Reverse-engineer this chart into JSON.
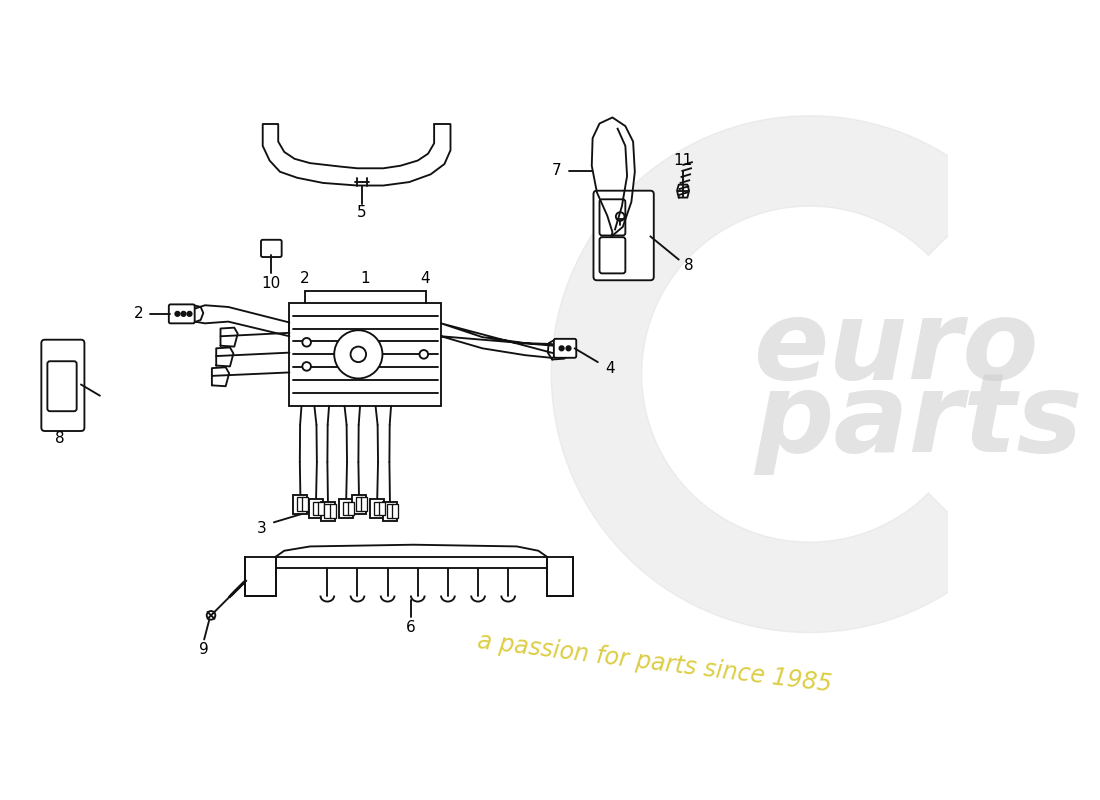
{
  "bg_color": "#ffffff",
  "line_color": "#111111",
  "line_width": 1.35,
  "watermark_text": "a passion for parts since 1985",
  "watermark_color": "#d8c830",
  "label_fontsize": 11
}
